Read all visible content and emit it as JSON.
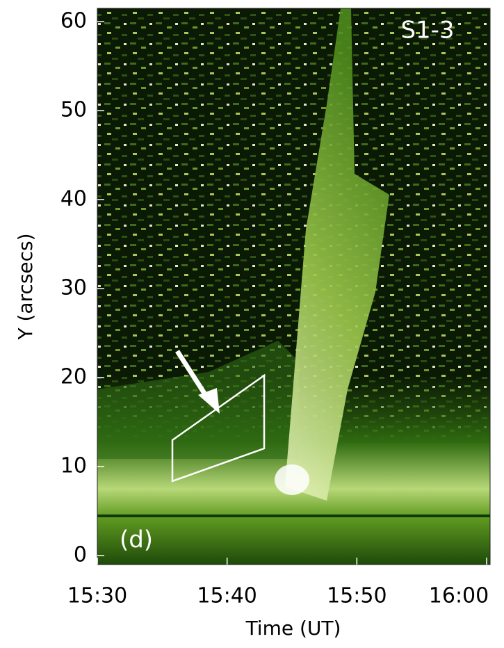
{
  "chart_data": {
    "type": "heatmap",
    "title": "S1-3",
    "panel_label": "(d)",
    "x_label": "Time (UT)",
    "y_label": "Y (arcsecs)",
    "xlim": [
      "15:30",
      "16:00"
    ],
    "xticks": [
      "15:30",
      "15:40",
      "15:50",
      "16:00"
    ],
    "ylim": [
      -1,
      61.5
    ],
    "yticks": [
      0,
      10,
      20,
      30,
      40,
      50,
      60
    ]
  }
}
